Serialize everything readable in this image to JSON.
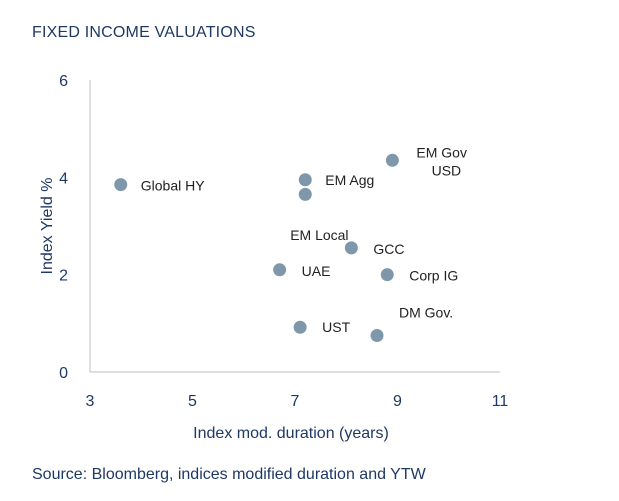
{
  "chart_data": {
    "type": "scatter",
    "title": "FIXED INCOME VALUATIONS",
    "xlabel": "Index mod. duration (years)",
    "ylabel": "Index Yield %",
    "xlim": [
      3,
      11
    ],
    "ylim": [
      0,
      6
    ],
    "xticks": [
      "3",
      "5",
      "7",
      "9",
      "11"
    ],
    "yticks": [
      "0",
      "2",
      "4",
      "6"
    ],
    "grid": false,
    "marker_color": "#7f97aa",
    "points": [
      {
        "label": "Global HY",
        "x": 3.6,
        "y": 3.85
      },
      {
        "label": "EM Agg",
        "x": 7.2,
        "y": 3.95
      },
      {
        "label": "",
        "x": 7.2,
        "y": 3.65
      },
      {
        "label": "EM Gov",
        "label2": "USD",
        "x": 8.9,
        "y": 4.35
      },
      {
        "label": "EM Local",
        "x": 8.1,
        "y": 2.55
      },
      {
        "label": "GCC",
        "x": 8.1,
        "y": 2.55
      },
      {
        "label": "UAE",
        "x": 6.7,
        "y": 2.1
      },
      {
        "label": "Corp IG",
        "x": 8.8,
        "y": 2.0
      },
      {
        "label": "UST",
        "x": 7.1,
        "y": 0.92
      },
      {
        "label": "DM Gov.",
        "x": 8.6,
        "y": 0.75
      }
    ]
  },
  "source": "Source: Bloomberg, indices modified duration and YTW"
}
